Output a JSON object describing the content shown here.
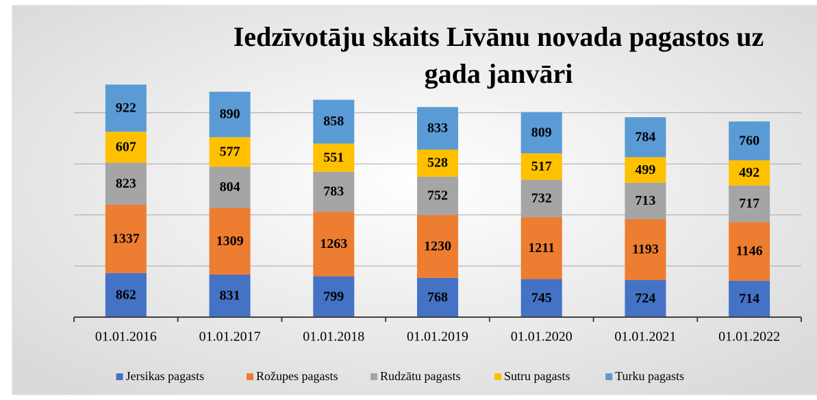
{
  "chart_data": {
    "type": "stacked-bar",
    "title": [
      "Iedzīvotāju skaits Līvānu novada pagastos uz",
      "gada janvāri"
    ],
    "categories": [
      "01.01.2016",
      "01.01.2017",
      "01.01.2018",
      "01.01.2019",
      "01.01.2020",
      "01.01.2021",
      "01.01.2022"
    ],
    "series": [
      {
        "name": "Jersikas pagasts",
        "color": "#4472c4",
        "values": [
          862,
          831,
          799,
          768,
          745,
          724,
          714
        ]
      },
      {
        "name": "Rožupes pagasts",
        "color": "#ed7d31",
        "values": [
          1337,
          1309,
          1263,
          1230,
          1211,
          1193,
          1146
        ]
      },
      {
        "name": "Rudzātu pagasts",
        "color": "#a5a5a5",
        "values": [
          823,
          804,
          783,
          752,
          732,
          713,
          717
        ]
      },
      {
        "name": "Sutru pagasts",
        "color": "#ffc000",
        "values": [
          607,
          577,
          551,
          528,
          517,
          499,
          492
        ]
      },
      {
        "name": "Turku pagasts",
        "color": "#5b9bd5",
        "values": [
          922,
          890,
          858,
          833,
          809,
          784,
          760
        ]
      }
    ],
    "ylim": [
      0,
      5000
    ],
    "yticks": [
      0,
      1000,
      2000,
      3000,
      4000
    ],
    "grid": true,
    "legend": "bottom"
  }
}
